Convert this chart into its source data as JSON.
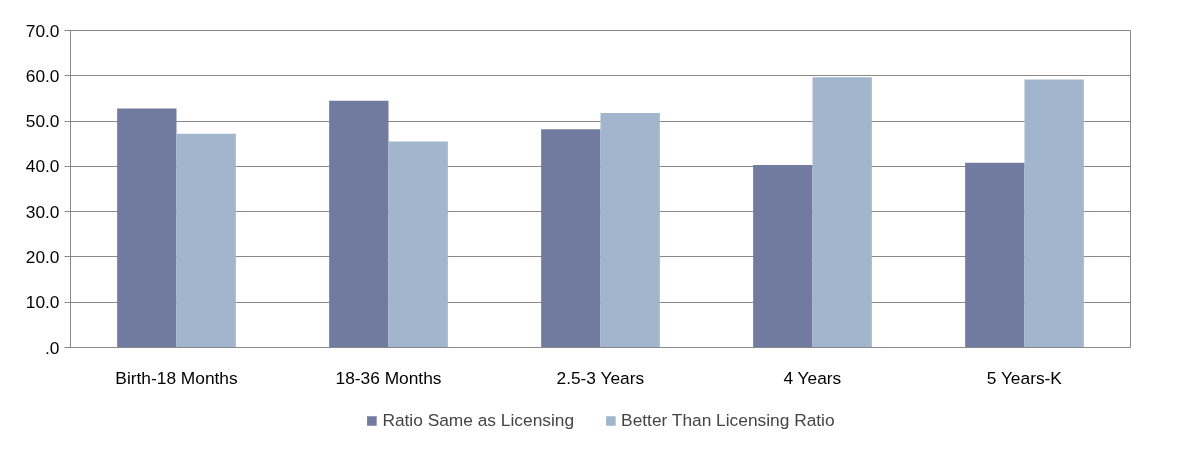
{
  "chart_data": {
    "type": "bar",
    "categories": [
      "Birth-18 Months",
      "18-36 Months",
      "2.5-3 Years",
      "4 Years",
      "5 Years-K"
    ],
    "series": [
      {
        "name": "Ratio Same as Licensing",
        "color": "#717ba0",
        "values": [
          52.8,
          54.5,
          48.2,
          40.3,
          40.8
        ]
      },
      {
        "name": "Better Than Licensing Ratio",
        "color": "#a1b6cd",
        "values": [
          47.2,
          45.5,
          51.8,
          59.7,
          59.2
        ]
      }
    ],
    "ylim": [
      0,
      70
    ],
    "yticks": [
      {
        "value": 0,
        "label": ".0"
      },
      {
        "value": 10,
        "label": "10.0"
      },
      {
        "value": 20,
        "label": "20.0"
      },
      {
        "value": 30,
        "label": "30.0"
      },
      {
        "value": 40,
        "label": "40.0"
      },
      {
        "value": 50,
        "label": "50.0"
      },
      {
        "value": 60,
        "label": "60.0"
      },
      {
        "value": 70,
        "label": "70.0"
      }
    ],
    "grid": "y",
    "legend": "bottom"
  }
}
